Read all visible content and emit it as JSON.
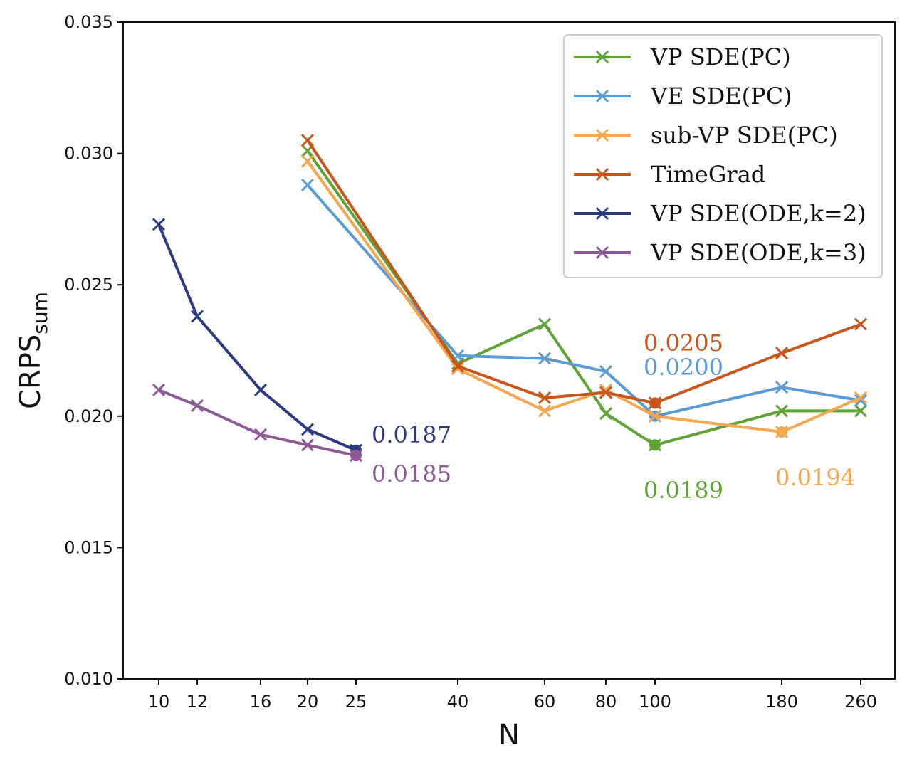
{
  "chart_data": {
    "type": "line",
    "xlabel": "N",
    "ylabel_main": "CRPS",
    "ylabel_sub": "sum",
    "ylim": [
      0.01,
      0.035
    ],
    "yticks": [
      0.01,
      0.015,
      0.02,
      0.025,
      0.03,
      0.035
    ],
    "ytick_labels": [
      "0.010",
      "0.015",
      "0.020",
      "0.025",
      "0.030",
      "0.035"
    ],
    "xticks": [
      10,
      12,
      16,
      20,
      25,
      40,
      60,
      80,
      100,
      180,
      260
    ],
    "xtick_labels": [
      "10",
      "12",
      "16",
      "20",
      "25",
      "40",
      "60",
      "80",
      "100",
      "180",
      "260"
    ],
    "legend_position": "top-right",
    "series": [
      {
        "name": "VP SDE(PC)",
        "color": "#5fa336",
        "x": [
          20,
          40,
          60,
          80,
          100,
          180,
          260
        ],
        "values": [
          0.0301,
          0.022,
          0.0235,
          0.0201,
          0.0189,
          0.0202,
          0.0202
        ],
        "best": {
          "x": 100,
          "value": 0.0189
        }
      },
      {
        "name": "VE SDE(PC)",
        "color": "#5b9bd5",
        "x": [
          20,
          40,
          60,
          80,
          100,
          180,
          260
        ],
        "values": [
          0.0288,
          0.0223,
          0.0222,
          0.0217,
          0.02,
          0.0211,
          0.0206
        ],
        "best": {
          "x": 100,
          "value": 0.02
        }
      },
      {
        "name": "sub-VP SDE(PC)",
        "color": "#f4a650",
        "x": [
          20,
          40,
          60,
          80,
          100,
          180,
          260
        ],
        "values": [
          0.0297,
          0.0218,
          0.0202,
          0.021,
          0.02,
          0.0194,
          0.0207
        ],
        "best": {
          "x": 180,
          "value": 0.0194
        }
      },
      {
        "name": "TimeGrad",
        "color": "#c8561a",
        "x": [
          20,
          40,
          60,
          80,
          100,
          180,
          260
        ],
        "values": [
          0.0305,
          0.0219,
          0.0207,
          0.0209,
          0.0205,
          0.0224,
          0.0235
        ],
        "best": {
          "x": 100,
          "value": 0.0205
        }
      },
      {
        "name": "VP SDE(ODE,k=2)",
        "color": "#2c3a84",
        "x": [
          10,
          12,
          16,
          20,
          25
        ],
        "values": [
          0.0273,
          0.0238,
          0.021,
          0.0195,
          0.0187
        ],
        "best": {
          "x": 25,
          "value": 0.0187
        }
      },
      {
        "name": "VP SDE(ODE,k=3)",
        "color": "#8c5a96",
        "x": [
          10,
          12,
          16,
          20,
          25
        ],
        "values": [
          0.021,
          0.0204,
          0.0193,
          0.0189,
          0.0185
        ],
        "best": {
          "x": 25,
          "value": 0.0185
        }
      }
    ],
    "annotations": [
      {
        "text": "0.0187",
        "series": 4
      },
      {
        "text": "0.0185",
        "series": 5
      },
      {
        "text": "0.0205",
        "series": 3
      },
      {
        "text": "0.0200",
        "series": 1
      },
      {
        "text": "0.0189",
        "series": 0
      },
      {
        "text": "0.0194",
        "series": 2
      }
    ]
  }
}
